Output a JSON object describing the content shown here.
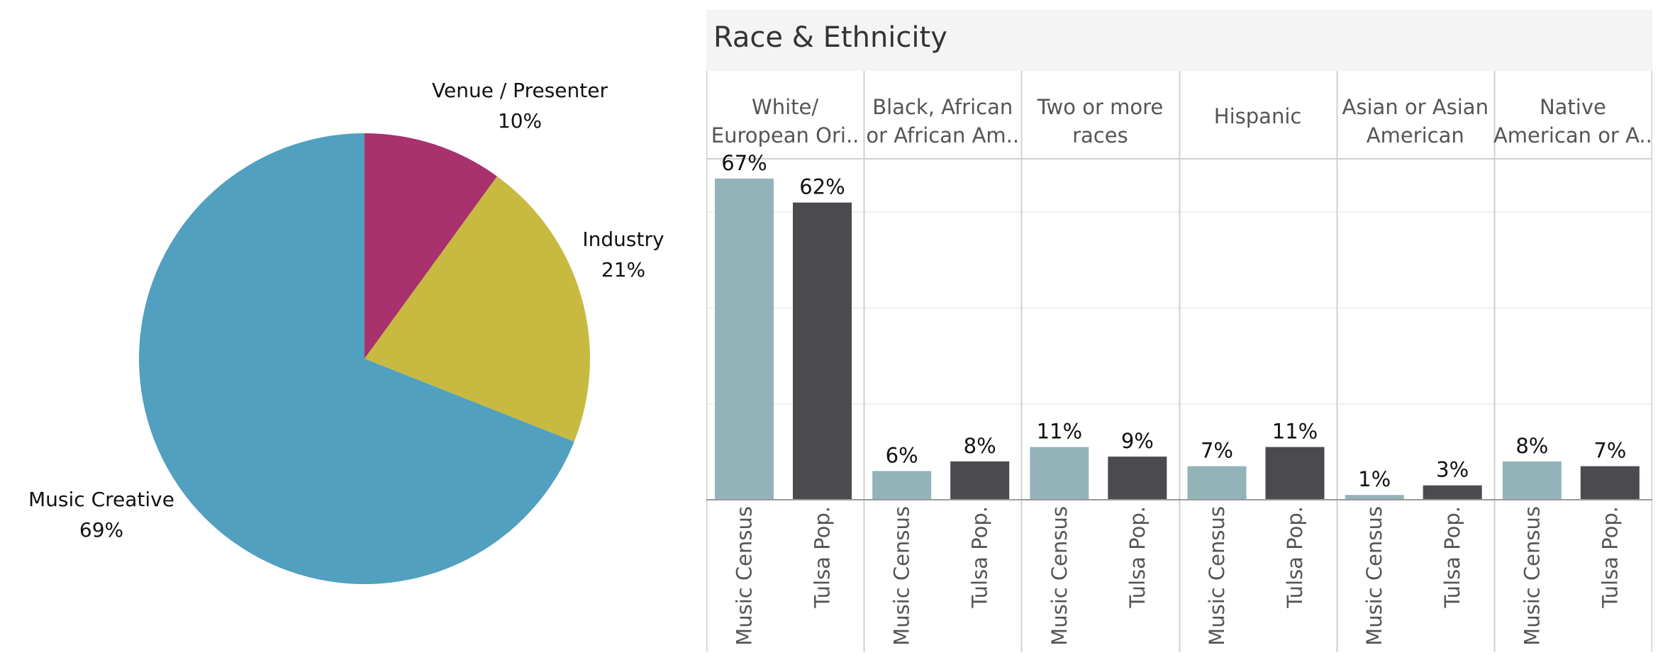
{
  "chart_data": [
    {
      "type": "pie",
      "title": "",
      "slices": [
        {
          "label": "Venue / Presenter",
          "pct_label": "10%",
          "value": 10,
          "color": "#a8316e"
        },
        {
          "label": "Industry",
          "pct_label": "21%",
          "value": 21,
          "color": "#c8b941"
        },
        {
          "label": "Music Creative",
          "pct_label": "69%",
          "value": 69,
          "color": "#51a0bf"
        }
      ]
    },
    {
      "type": "bar",
      "title": "Race & Ethnicity",
      "ylim": [
        0,
        80
      ],
      "grid": true,
      "series_names": [
        "Music Census",
        "Tulsa Pop."
      ],
      "series_colors": [
        "#93b3b8",
        "#4a4a4f"
      ],
      "categories": [
        {
          "header": [
            "White/",
            "European Ori.."
          ],
          "values": [
            67,
            62
          ],
          "labels": [
            "67%",
            "62%"
          ]
        },
        {
          "header": [
            "Black, African",
            "or African Am.."
          ],
          "values": [
            6,
            8
          ],
          "labels": [
            "6%",
            "8%"
          ]
        },
        {
          "header": [
            "Two or more",
            "races"
          ],
          "values": [
            11,
            9
          ],
          "labels": [
            "11%",
            "9%"
          ]
        },
        {
          "header": [
            "Hispanic"
          ],
          "values": [
            7,
            11
          ],
          "labels": [
            "7%",
            "11%"
          ]
        },
        {
          "header": [
            "Asian or Asian",
            "American"
          ],
          "values": [
            1,
            3
          ],
          "labels": [
            "1%",
            "3%"
          ]
        },
        {
          "header": [
            "Native",
            "American or A.."
          ],
          "values": [
            8,
            7
          ],
          "labels": [
            "8%",
            "7%"
          ]
        }
      ]
    }
  ]
}
